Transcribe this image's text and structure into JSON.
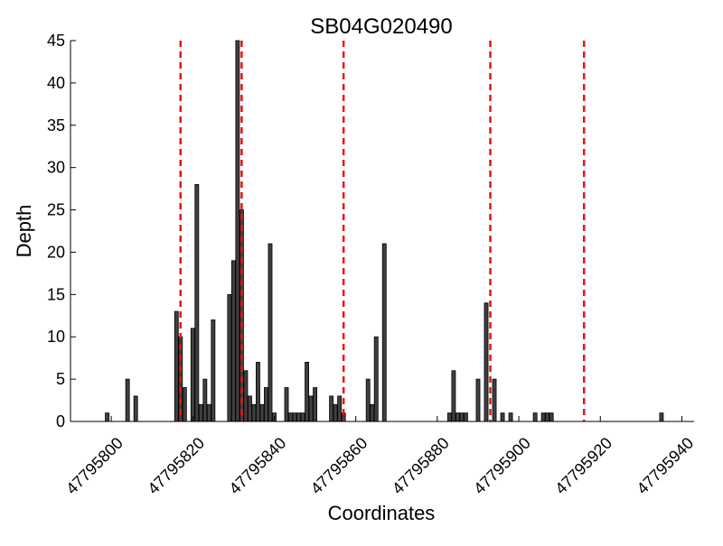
{
  "chart_data": {
    "type": "bar",
    "title": "SB04G020490",
    "xlabel": "Coordinates",
    "ylabel": "Depth",
    "xlim": [
      47795790,
      47795943
    ],
    "ylim": [
      0,
      45
    ],
    "grid": false,
    "legend": "none",
    "x_ticks": [
      47795800,
      47795820,
      47795840,
      47795860,
      47795880,
      47795900,
      47795920,
      47795940
    ],
    "x_tick_labels": [
      "47795800",
      "47795820",
      "47795840",
      "47795860",
      "47795880",
      "47795900",
      "47795920",
      "47795940"
    ],
    "y_ticks": [
      0,
      5,
      10,
      15,
      20,
      25,
      30,
      35,
      40,
      45
    ],
    "y_tick_labels": [
      "0",
      "5",
      "10",
      "15",
      "20",
      "25",
      "30",
      "35",
      "40",
      "45"
    ],
    "series": [
      {
        "x": [
          47795799,
          47795804,
          47795806,
          47795816,
          47795817,
          47795818,
          47795820,
          47795821,
          47795822,
          47795823,
          47795824,
          47795825,
          47795829,
          47795830,
          47795831,
          47795832,
          47795833,
          47795834,
          47795835,
          47795836,
          47795836,
          47795837,
          47795838,
          47795839,
          47795840,
          47795843,
          47795844,
          47795845,
          47795846,
          47795847,
          47795848,
          47795849,
          47795850,
          47795854,
          47795855,
          47795856,
          47795857,
          47795863,
          47795864,
          47795865,
          47795867,
          47795883,
          47795884,
          47795885,
          47795886,
          47795887,
          47795890,
          47795892,
          47795894,
          47795896,
          47795898,
          47795904,
          47795906,
          47795907,
          47795908,
          47795935
        ],
        "values": [
          1,
          5,
          3,
          13,
          10,
          4,
          11,
          28,
          2,
          5,
          2,
          12,
          15,
          19,
          45,
          25,
          6,
          3,
          2,
          1,
          7,
          2,
          4,
          21,
          1,
          4,
          1,
          1,
          1,
          1,
          7,
          3,
          4,
          3,
          2,
          3,
          1,
          5,
          2,
          10,
          21,
          1,
          6,
          1,
          1,
          1,
          5,
          14,
          5,
          1,
          1,
          1,
          1,
          1,
          1,
          1
        ]
      }
    ],
    "vlines": [
      47795817,
      47795832,
      47795857,
      47795893,
      47795916
    ],
    "colors": {
      "bar_fill": "#404040",
      "bar_edge": "#000000",
      "vline": "#ee1111",
      "axis": "#000000"
    }
  }
}
